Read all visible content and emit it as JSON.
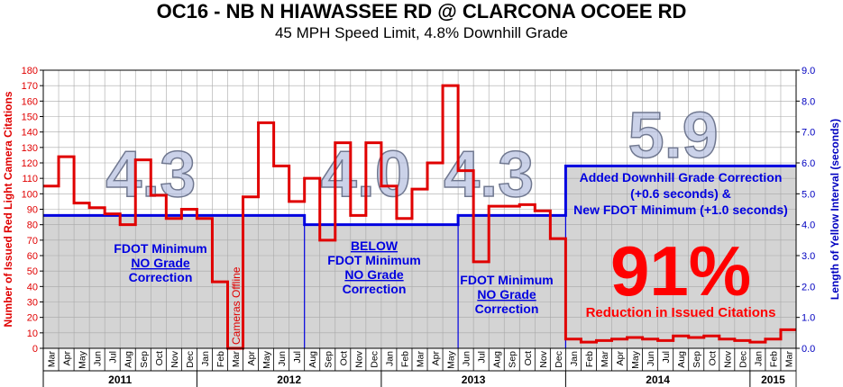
{
  "chart_data": {
    "type": "line",
    "title": "OC16 - NB N HIAWASSEE RD @ CLARCONA OCOEE RD",
    "subtitle": "45 MPH Speed Limit, 4.8% Downhill Grade",
    "ylabel": "Number of Issued Red Light Camera Citations",
    "y2label": "Length of Yellow Interval (seconds)",
    "ylim": [
      0,
      180
    ],
    "y2lim": [
      0,
      9
    ],
    "yticks": [
      "0",
      "10",
      "20",
      "30",
      "40",
      "50",
      "60",
      "70",
      "80",
      "90",
      "100",
      "110",
      "120",
      "130",
      "140",
      "150",
      "160",
      "170",
      "180"
    ],
    "y2ticks": [
      "0.0",
      "1.0",
      "2.0",
      "3.0",
      "4.0",
      "5.0",
      "6.0",
      "7.0",
      "8.0",
      "9.0"
    ],
    "grid": true,
    "months": [
      "Mar",
      "Apr",
      "May",
      "Jun",
      "Jul",
      "Aug",
      "Sep",
      "Oct",
      "Nov",
      "Dec",
      "Jan",
      "Feb",
      "Mar",
      "Apr",
      "May",
      "Jun",
      "Jul",
      "Aug",
      "Sep",
      "Oct",
      "Nov",
      "Dec",
      "Jan",
      "Feb",
      "Mar",
      "Apr",
      "May",
      "Jun",
      "Jul",
      "Aug",
      "Sep",
      "Oct",
      "Nov",
      "Dec",
      "Jan",
      "Feb",
      "Mar",
      "Apr",
      "May",
      "Jun",
      "Jul",
      "Aug",
      "Sep",
      "Oct",
      "Nov",
      "Dec",
      "Jan",
      "Feb",
      "Mar"
    ],
    "years": [
      {
        "label": "2011",
        "months": 10
      },
      {
        "label": "2012",
        "months": 12
      },
      {
        "label": "2013",
        "months": 12
      },
      {
        "label": "2014",
        "months": 12
      },
      {
        "label": "2015",
        "months": 3
      }
    ],
    "series": [
      {
        "name": "",
        "axis": "left",
        "color": "#e00000",
        "values": [
          105,
          124,
          94,
          91,
          87,
          80,
          122,
          99,
          84,
          90,
          84,
          43,
          0,
          98,
          146,
          118,
          95,
          110,
          70,
          133,
          86,
          133,
          105,
          84,
          103,
          120,
          170,
          115,
          56,
          92,
          92,
          93,
          89,
          71,
          6,
          4,
          5,
          6,
          7,
          6,
          5,
          8,
          7,
          8,
          6,
          5,
          4,
          6,
          12
        ]
      },
      {
        "name": "",
        "axis": "right",
        "color": "#0000e0",
        "values": [
          4.3,
          4.3,
          4.3,
          4.3,
          4.3,
          4.3,
          4.3,
          4.3,
          4.3,
          4.3,
          4.3,
          4.3,
          4.3,
          4.3,
          4.3,
          4.3,
          4.3,
          4.0,
          4.0,
          4.0,
          4.0,
          4.0,
          4.0,
          4.0,
          4.0,
          4.0,
          4.0,
          4.3,
          4.3,
          4.3,
          4.3,
          4.3,
          4.3,
          4.3,
          5.9,
          5.9,
          5.9,
          5.9,
          5.9,
          5.9,
          5.9,
          5.9,
          5.9,
          5.9,
          5.9,
          5.9,
          5.9,
          5.9,
          5.9
        ]
      }
    ],
    "big_labels": [
      {
        "text": "4.3",
        "month": 7
      },
      {
        "text": "4.0",
        "month": 21
      },
      {
        "text": "4.3",
        "month": 29
      },
      {
        "text": "5.9",
        "month": 41
      }
    ],
    "annotations": {
      "cameras_offline": "Cameras Offline",
      "phase1": [
        "FDOT Minimum",
        "NO Grade",
        "Correction"
      ],
      "phase2": [
        "BELOW",
        "FDOT Minimum",
        "NO Grade",
        "Correction"
      ],
      "phase3": [
        "FDOT Minimum",
        "NO Grade",
        "Correction"
      ],
      "phase4": [
        "Added Downhill Grade Correction",
        "(+0.6 seconds) &",
        "New FDOT Minimum (+1.0 seconds)"
      ],
      "reduction_pct": "91%",
      "reduction_text": "Reduction in Issued Citations"
    }
  }
}
